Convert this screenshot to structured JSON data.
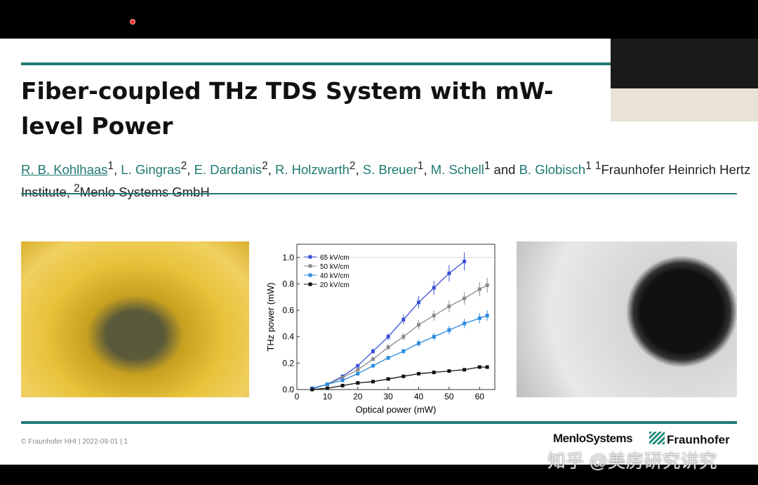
{
  "slide": {
    "title": "Fiber-coupled THz TDS System with mW-level Power",
    "authors": [
      {
        "name": "R. B. Kohlhaas",
        "sup": "1"
      },
      {
        "name": "L. Gingras",
        "sup": "2"
      },
      {
        "name": "E. Dardanis",
        "sup": "2"
      },
      {
        "name": "R. Holzwarth",
        "sup": "2"
      },
      {
        "name": "S. Breuer",
        "sup": "1"
      },
      {
        "name": "M. Schell",
        "sup": "1"
      },
      {
        "name": "B. Globisch",
        "sup": "1"
      }
    ],
    "and": "and",
    "affiliation1": "Fraunhofer Heinrich Hertz Institute,",
    "affiliation2": "Menlo Systems GmbH",
    "footer": "© Fraunhofer HHI | 2022-09-01 | 1",
    "logos": {
      "menlo": "MenloSystems",
      "fraunhofer": "Fraunhofer"
    },
    "watermark": "知乎 @美房研究讲究",
    "accent_color": "#1f7a72"
  },
  "chart_data": {
    "type": "line",
    "xlabel": "Optical power (mW)",
    "ylabel": "THz power (mW)",
    "xlim": [
      0,
      65
    ],
    "ylim": [
      0,
      1.1
    ],
    "xticks": [
      0,
      10,
      20,
      30,
      40,
      50,
      60
    ],
    "yticks": [
      0.0,
      0.2,
      0.4,
      0.6,
      0.8,
      1.0
    ],
    "reference_line": 1.0,
    "legend": "top-left",
    "series": [
      {
        "name": "65 kV/cm",
        "color": "#3a4fd6",
        "x": [
          5,
          10,
          15,
          20,
          25,
          30,
          35,
          40,
          45,
          50,
          55
        ],
        "y": [
          0.01,
          0.04,
          0.1,
          0.18,
          0.29,
          0.4,
          0.53,
          0.66,
          0.77,
          0.88,
          0.97
        ]
      },
      {
        "name": "50 kV/cm",
        "color": "#8a8a8a",
        "x": [
          5,
          10,
          15,
          20,
          25,
          30,
          35,
          40,
          45,
          50,
          55,
          60,
          62.5
        ],
        "y": [
          0.005,
          0.04,
          0.09,
          0.15,
          0.23,
          0.32,
          0.4,
          0.49,
          0.56,
          0.63,
          0.69,
          0.76,
          0.79
        ]
      },
      {
        "name": "40 kV/cm",
        "color": "#2a8be0",
        "x": [
          5,
          10,
          15,
          20,
          25,
          30,
          35,
          40,
          45,
          50,
          55,
          60,
          62.5
        ],
        "y": [
          0.005,
          0.04,
          0.07,
          0.12,
          0.18,
          0.24,
          0.29,
          0.35,
          0.4,
          0.45,
          0.5,
          0.54,
          0.56
        ]
      },
      {
        "name": "20 kV/cm",
        "color": "#111111",
        "x": [
          5,
          10,
          15,
          20,
          25,
          30,
          35,
          40,
          45,
          50,
          55,
          60,
          62.5
        ],
        "y": [
          0.0,
          0.01,
          0.03,
          0.05,
          0.06,
          0.08,
          0.1,
          0.12,
          0.13,
          0.14,
          0.15,
          0.17,
          0.17
        ]
      }
    ]
  }
}
